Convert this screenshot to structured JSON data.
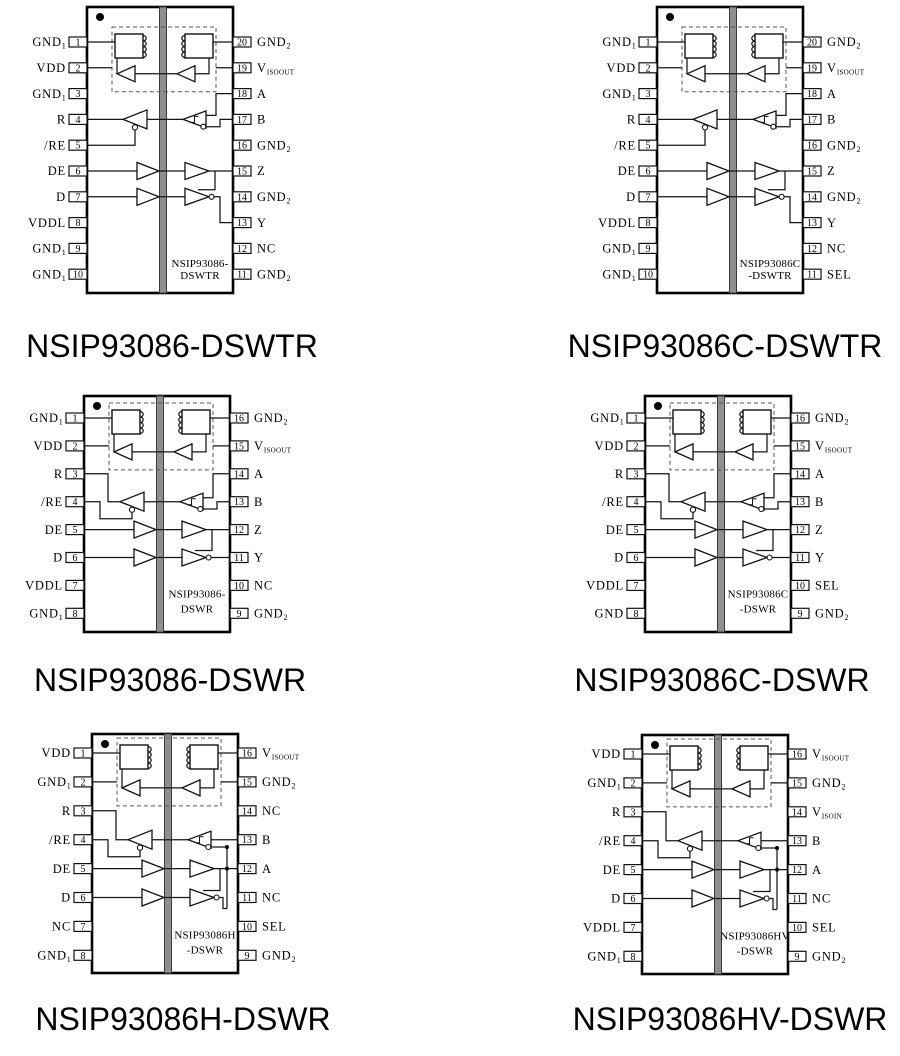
{
  "colors": {
    "ink": "#000000",
    "isolation_barrier": "#8f8f8f",
    "background": "#ffffff"
  },
  "figures": [
    {
      "caption": "NSIP93086-DSWTR",
      "die_label": [
        "NSIP93086-",
        "DSWTR"
      ],
      "wiring": "split-20",
      "left_pins": [
        {
          "num": "1",
          "label": "GND",
          "sub": "1"
        },
        {
          "num": "2",
          "label": "VDD",
          "sub": ""
        },
        {
          "num": "3",
          "label": "GND",
          "sub": "1"
        },
        {
          "num": "4",
          "label": "R",
          "sub": ""
        },
        {
          "num": "5",
          "label": "/RE",
          "sub": ""
        },
        {
          "num": "6",
          "label": "DE",
          "sub": ""
        },
        {
          "num": "7",
          "label": "D",
          "sub": ""
        },
        {
          "num": "8",
          "label": "VDDL",
          "sub": ""
        },
        {
          "num": "9",
          "label": "GND",
          "sub": "1"
        },
        {
          "num": "10",
          "label": "GND",
          "sub": "1"
        }
      ],
      "right_pins": [
        {
          "num": "20",
          "label": "GND",
          "sub": "2"
        },
        {
          "num": "19",
          "label": "V",
          "sub": "ISOOUT"
        },
        {
          "num": "18",
          "label": "A",
          "sub": ""
        },
        {
          "num": "17",
          "label": "B",
          "sub": ""
        },
        {
          "num": "16",
          "label": "GND",
          "sub": "2"
        },
        {
          "num": "15",
          "label": "Z",
          "sub": ""
        },
        {
          "num": "14",
          "label": "GND",
          "sub": "2"
        },
        {
          "num": "13",
          "label": "Y",
          "sub": ""
        },
        {
          "num": "12",
          "label": "NC",
          "sub": ""
        },
        {
          "num": "11",
          "label": "GND",
          "sub": "2"
        }
      ]
    },
    {
      "caption": "NSIP93086C-DSWTR",
      "die_label": [
        "NSIP93086C",
        "-DSWTR"
      ],
      "wiring": "split-20",
      "left_pins": [
        {
          "num": "1",
          "label": "GND",
          "sub": "1"
        },
        {
          "num": "2",
          "label": "VDD",
          "sub": ""
        },
        {
          "num": "3",
          "label": "GND",
          "sub": "1"
        },
        {
          "num": "4",
          "label": "R",
          "sub": ""
        },
        {
          "num": "5",
          "label": "/RE",
          "sub": ""
        },
        {
          "num": "6",
          "label": "DE",
          "sub": ""
        },
        {
          "num": "7",
          "label": "D",
          "sub": ""
        },
        {
          "num": "8",
          "label": "VDDL",
          "sub": ""
        },
        {
          "num": "9",
          "label": "GND",
          "sub": "1"
        },
        {
          "num": "10",
          "label": "GND",
          "sub": "1"
        }
      ],
      "right_pins": [
        {
          "num": "20",
          "label": "GND",
          "sub": "2"
        },
        {
          "num": "19",
          "label": "V",
          "sub": "ISOOUT"
        },
        {
          "num": "18",
          "label": "A",
          "sub": ""
        },
        {
          "num": "17",
          "label": "B",
          "sub": ""
        },
        {
          "num": "16",
          "label": "GND",
          "sub": "2"
        },
        {
          "num": "15",
          "label": "Z",
          "sub": ""
        },
        {
          "num": "14",
          "label": "GND",
          "sub": "2"
        },
        {
          "num": "13",
          "label": "Y",
          "sub": ""
        },
        {
          "num": "12",
          "label": "NC",
          "sub": ""
        },
        {
          "num": "11",
          "label": "SEL",
          "sub": ""
        }
      ]
    },
    {
      "caption": "NSIP93086-DSWR",
      "die_label": [
        "NSIP93086-",
        "DSWR"
      ],
      "wiring": "split-16",
      "left_pins": [
        {
          "num": "1",
          "label": "GND",
          "sub": "1"
        },
        {
          "num": "2",
          "label": "VDD",
          "sub": ""
        },
        {
          "num": "3",
          "label": "R",
          "sub": ""
        },
        {
          "num": "4",
          "label": "/RE",
          "sub": ""
        },
        {
          "num": "5",
          "label": "DE",
          "sub": ""
        },
        {
          "num": "6",
          "label": "D",
          "sub": ""
        },
        {
          "num": "7",
          "label": "VDDL",
          "sub": ""
        },
        {
          "num": "8",
          "label": "GND",
          "sub": "1"
        }
      ],
      "right_pins": [
        {
          "num": "16",
          "label": "GND",
          "sub": "2"
        },
        {
          "num": "15",
          "label": "V",
          "sub": "ISOOUT"
        },
        {
          "num": "14",
          "label": "A",
          "sub": ""
        },
        {
          "num": "13",
          "label": "B",
          "sub": ""
        },
        {
          "num": "12",
          "label": "Z",
          "sub": ""
        },
        {
          "num": "11",
          "label": "Y",
          "sub": ""
        },
        {
          "num": "10",
          "label": "NC",
          "sub": ""
        },
        {
          "num": "9",
          "label": "GND",
          "sub": "2"
        }
      ]
    },
    {
      "caption": "NSIP93086C-DSWR",
      "die_label": [
        "NSIP93086C",
        "-DSWR"
      ],
      "wiring": "split-16",
      "left_pins": [
        {
          "num": "1",
          "label": "GND",
          "sub": "1"
        },
        {
          "num": "2",
          "label": "VDD",
          "sub": ""
        },
        {
          "num": "3",
          "label": "R",
          "sub": ""
        },
        {
          "num": "4",
          "label": "/RE",
          "sub": ""
        },
        {
          "num": "5",
          "label": "DE",
          "sub": ""
        },
        {
          "num": "6",
          "label": "D",
          "sub": ""
        },
        {
          "num": "7",
          "label": "VDDL",
          "sub": ""
        },
        {
          "num": "8",
          "label": "GND",
          "sub": ""
        }
      ],
      "right_pins": [
        {
          "num": "16",
          "label": "GND",
          "sub": "2"
        },
        {
          "num": "15",
          "label": "V",
          "sub": "ISOOUT"
        },
        {
          "num": "14",
          "label": "A",
          "sub": ""
        },
        {
          "num": "13",
          "label": "B",
          "sub": ""
        },
        {
          "num": "12",
          "label": "Z",
          "sub": ""
        },
        {
          "num": "11",
          "label": "Y",
          "sub": ""
        },
        {
          "num": "10",
          "label": "SEL",
          "sub": ""
        },
        {
          "num": "9",
          "label": "GND",
          "sub": "2"
        }
      ]
    },
    {
      "caption": "NSIP93086H-DSWR",
      "die_label": [
        "NSIP93086H",
        "-DSWR"
      ],
      "wiring": "loopback-16",
      "left_pins": [
        {
          "num": "1",
          "label": "VDD",
          "sub": ""
        },
        {
          "num": "2",
          "label": "GND",
          "sub": "1"
        },
        {
          "num": "3",
          "label": "R",
          "sub": ""
        },
        {
          "num": "4",
          "label": "/RE",
          "sub": ""
        },
        {
          "num": "5",
          "label": "DE",
          "sub": ""
        },
        {
          "num": "6",
          "label": "D",
          "sub": ""
        },
        {
          "num": "7",
          "label": "NC",
          "sub": ""
        },
        {
          "num": "8",
          "label": "GND",
          "sub": "1"
        }
      ],
      "right_pins": [
        {
          "num": "16",
          "label": "V",
          "sub": "ISOOUT"
        },
        {
          "num": "15",
          "label": "GND",
          "sub": "2"
        },
        {
          "num": "14",
          "label": "NC",
          "sub": ""
        },
        {
          "num": "13",
          "label": "B",
          "sub": ""
        },
        {
          "num": "12",
          "label": "A",
          "sub": ""
        },
        {
          "num": "11",
          "label": "NC",
          "sub": ""
        },
        {
          "num": "10",
          "label": "SEL",
          "sub": ""
        },
        {
          "num": "9",
          "label": "GND",
          "sub": "2"
        }
      ]
    },
    {
      "caption": "NSIP93086HV-DSWR",
      "die_label": [
        "NSIP93086HV",
        "-DSWR"
      ],
      "wiring": "loopback-16",
      "left_pins": [
        {
          "num": "1",
          "label": "VDD",
          "sub": ""
        },
        {
          "num": "2",
          "label": "GND",
          "sub": "1"
        },
        {
          "num": "3",
          "label": "R",
          "sub": ""
        },
        {
          "num": "4",
          "label": "/RE",
          "sub": ""
        },
        {
          "num": "5",
          "label": "DE",
          "sub": ""
        },
        {
          "num": "6",
          "label": "D",
          "sub": ""
        },
        {
          "num": "7",
          "label": "VDDL",
          "sub": ""
        },
        {
          "num": "8",
          "label": "GND",
          "sub": "1"
        }
      ],
      "right_pins": [
        {
          "num": "16",
          "label": "V",
          "sub": "ISOOUT"
        },
        {
          "num": "15",
          "label": "GND",
          "sub": "2"
        },
        {
          "num": "14",
          "label": "V",
          "sub": "ISOIN"
        },
        {
          "num": "13",
          "label": "B",
          "sub": ""
        },
        {
          "num": "12",
          "label": "A",
          "sub": ""
        },
        {
          "num": "11",
          "label": "NC",
          "sub": ""
        },
        {
          "num": "10",
          "label": "SEL",
          "sub": ""
        },
        {
          "num": "9",
          "label": "GND",
          "sub": "2"
        }
      ]
    }
  ]
}
